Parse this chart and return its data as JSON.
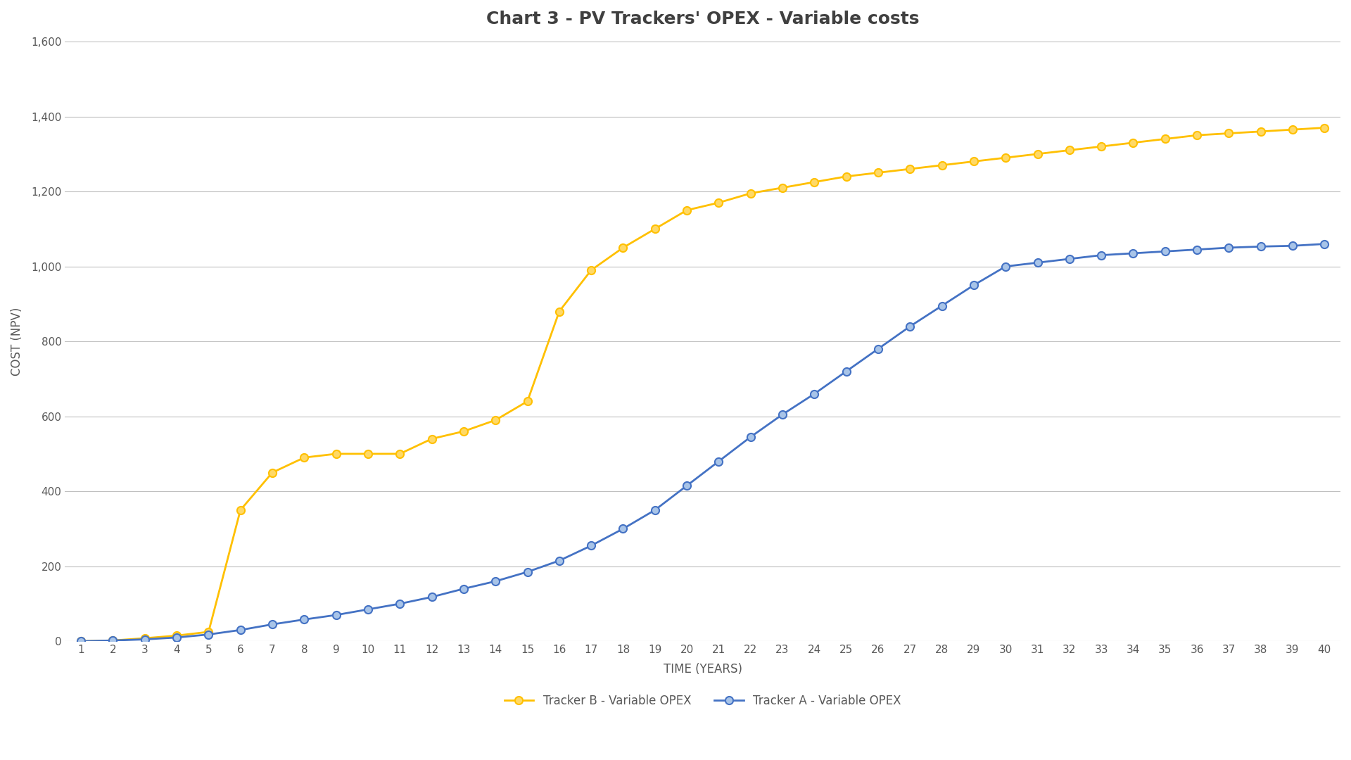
{
  "title": "Chart 3 - PV Trackers' OPEX - Variable costs",
  "xlabel": "TIME (YEARS)",
  "ylabel": "COST (NPV)",
  "ylim": [
    0,
    1600
  ],
  "yticks": [
    0,
    200,
    400,
    600,
    800,
    1000,
    1200,
    1400,
    1600
  ],
  "ytick_labels": [
    "0",
    "200",
    "400",
    "600",
    "800",
    "1,000",
    "1,200",
    "1,400",
    "1,600"
  ],
  "years": [
    1,
    2,
    3,
    4,
    5,
    6,
    7,
    8,
    9,
    10,
    11,
    12,
    13,
    14,
    15,
    16,
    17,
    18,
    19,
    20,
    21,
    22,
    23,
    24,
    25,
    26,
    27,
    28,
    29,
    30,
    31,
    32,
    33,
    34,
    35,
    36,
    37,
    38,
    39,
    40
  ],
  "tracker_a": [
    0,
    2,
    5,
    10,
    18,
    30,
    45,
    58,
    70,
    85,
    100,
    118,
    140,
    160,
    185,
    215,
    255,
    300,
    350,
    415,
    480,
    545,
    605,
    660,
    720,
    780,
    840,
    895,
    950,
    1000,
    1010,
    1020,
    1030,
    1035,
    1040,
    1045,
    1050,
    1053,
    1055,
    1060
  ],
  "tracker_b": [
    0,
    2,
    8,
    15,
    25,
    350,
    450,
    490,
    500,
    500,
    500,
    540,
    560,
    590,
    640,
    880,
    990,
    1050,
    1100,
    1150,
    1170,
    1195,
    1210,
    1225,
    1240,
    1250,
    1260,
    1270,
    1280,
    1290,
    1300,
    1310,
    1320,
    1330,
    1340,
    1350,
    1355,
    1360,
    1365,
    1370
  ],
  "color_a": "#4472C4",
  "color_b": "#FFC000",
  "marker_a": "o",
  "marker_b": "o",
  "marker_facecolor_a": "#A8C4E8",
  "marker_facecolor_b": "#FFD966",
  "legend_a": "Tracker A - Variable OPEX",
  "legend_b": "Tracker B - Variable OPEX",
  "background_color": "#FFFFFF",
  "plot_background": "#FFFFFF",
  "grid_color": "#C0C0C0",
  "title_fontsize": 18,
  "label_fontsize": 12,
  "tick_fontsize": 11,
  "legend_fontsize": 12
}
